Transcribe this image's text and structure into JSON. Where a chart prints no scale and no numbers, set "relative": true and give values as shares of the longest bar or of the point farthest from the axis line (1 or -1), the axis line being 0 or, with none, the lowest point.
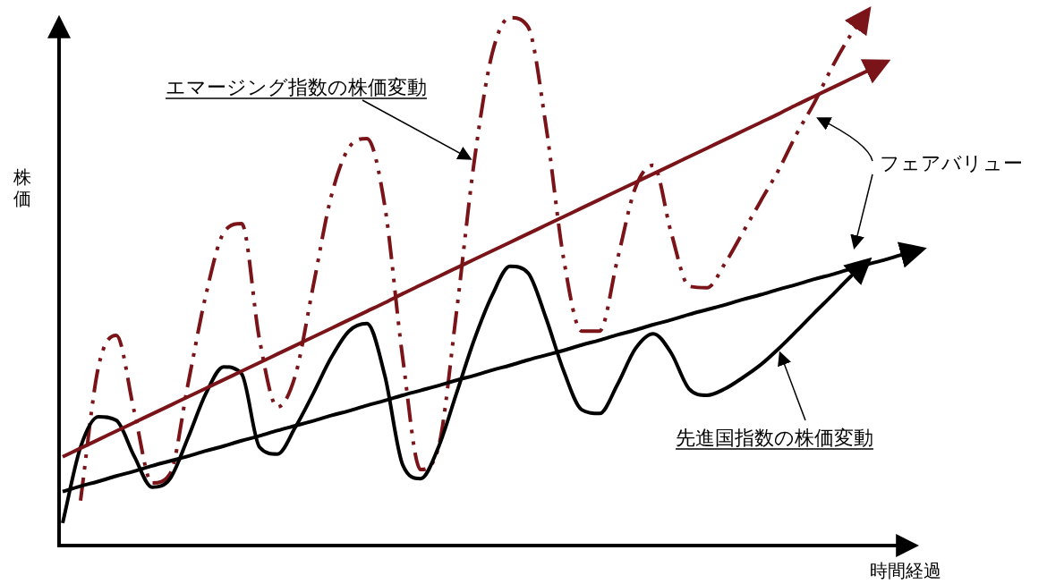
{
  "chart_data": {
    "type": "line",
    "relative": true,
    "xlabel": "時間経過",
    "ylabel": "株価",
    "categories": [
      null,
      null,
      null,
      null,
      null,
      null,
      null,
      null,
      null,
      null,
      null,
      null,
      null,
      null,
      null,
      null,
      null,
      null,
      null,
      null,
      null,
      null,
      null,
      null,
      null,
      null,
      null,
      null,
      null,
      null,
      null,
      null,
      null,
      null,
      null,
      null,
      null,
      null,
      null,
      null,
      null,
      null,
      null,
      null,
      null,
      null,
      null,
      null,
      null
    ],
    "series": [
      {
        "name": "エマージング指数の株価変動",
        "color": "#7b1418",
        "line_style": "dashed",
        "values": [
          null,
          0.084,
          0.334,
          0.393,
          0.251,
          0.117,
          0.134,
          0.301,
          0.468,
          0.585,
          0.602,
          0.385,
          0.259,
          0.318,
          0.485,
          0.652,
          0.744,
          0.761,
          0.635,
          0.351,
          0.142,
          0.184,
          0.435,
          0.719,
          0.92,
          0.987,
          0.97,
          0.786,
          0.535,
          0.401,
          0.401,
          0.535,
          0.669,
          0.711,
          0.585,
          0.485,
          0.482,
          0.527,
          0.585,
          0.644,
          0.702,
          0.769,
          0.828,
          0.895,
          0.953,
          1,
          null,
          null,
          null
        ]
      },
      {
        "name": "先進国指数の株価変動",
        "color": "#000000",
        "line_style": "solid",
        "values": [
          0.042,
          0.184,
          0.241,
          0.234,
          0.167,
          0.109,
          0.125,
          0.201,
          0.284,
          0.334,
          0.321,
          0.184,
          0.171,
          0.221,
          0.284,
          0.351,
          0.401,
          0.415,
          0.318,
          0.151,
          0.125,
          0.184,
          0.284,
          0.385,
          0.468,
          0.522,
          0.51,
          0.426,
          0.326,
          0.254,
          0.247,
          0.301,
          0.368,
          0.396,
          0.36,
          0.293,
          0.281,
          0.293,
          0.314,
          0.338,
          0.368,
          0.401,
          0.435,
          0.468,
          0.502,
          0.532,
          null,
          null,
          null
        ]
      },
      {
        "color": "#7b1418",
        "line_style": "solid",
        "values": [
          0.166,
          0.182,
          0.198,
          0.214,
          0.23,
          0.246,
          0.262,
          0.278,
          0.294,
          0.31,
          0.326,
          0.342,
          0.358,
          0.374,
          0.39,
          0.406,
          0.422,
          0.438,
          0.454,
          0.471,
          0.487,
          0.503,
          0.519,
          0.535,
          0.551,
          0.567,
          0.583,
          0.599,
          0.615,
          0.631,
          0.647,
          0.663,
          0.679,
          0.695,
          0.711,
          0.727,
          0.743,
          0.759,
          0.775,
          0.791,
          0.807,
          0.824,
          0.84,
          0.856,
          0.872,
          0.888,
          0.904,
          null,
          null
        ]
      },
      {
        "color": "#000000",
        "line_style": "solid",
        "values": [
          0.101,
          0.111,
          0.12,
          0.13,
          0.139,
          0.149,
          0.158,
          0.167,
          0.177,
          0.186,
          0.196,
          0.205,
          0.215,
          0.224,
          0.233,
          0.243,
          0.252,
          0.262,
          0.271,
          0.281,
          0.29,
          0.299,
          0.309,
          0.318,
          0.328,
          0.337,
          0.347,
          0.356,
          0.365,
          0.375,
          0.384,
          0.394,
          0.403,
          0.413,
          0.422,
          0.432,
          0.441,
          0.45,
          0.46,
          0.469,
          0.479,
          0.488,
          0.498,
          0.507,
          0.517,
          0.526,
          0.535,
          0.545,
          0.554
        ]
      }
    ],
    "annotations": [
      "フェアバリュー"
    ]
  }
}
